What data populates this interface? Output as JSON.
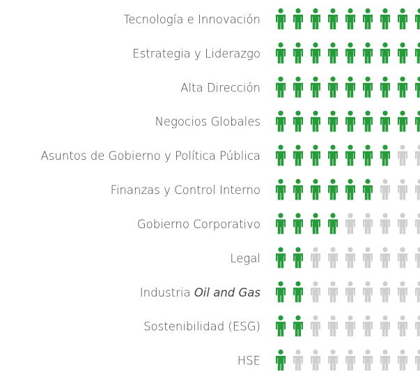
{
  "chart_data": {
    "type": "pictograph",
    "categories": [
      "Tecnología e Innovación",
      "Estrategia y Liderazgo",
      "Alta Dirección",
      "Negocios Globales",
      "Asuntos de Gobierno y Política Pública",
      "Finanzas y Control Interno",
      "Gobierno Corporativo",
      "Legal",
      [
        "Industria ",
        "Oil and Gas"
      ],
      "Sostenibilidad (ESG)",
      "HSE"
    ],
    "values": [
      9,
      9,
      9,
      9,
      7,
      6,
      4,
      2,
      2,
      2,
      1
    ],
    "icons_per_row": 9,
    "color": "#279a3b",
    "empty_color": "#cfcfcf"
  }
}
